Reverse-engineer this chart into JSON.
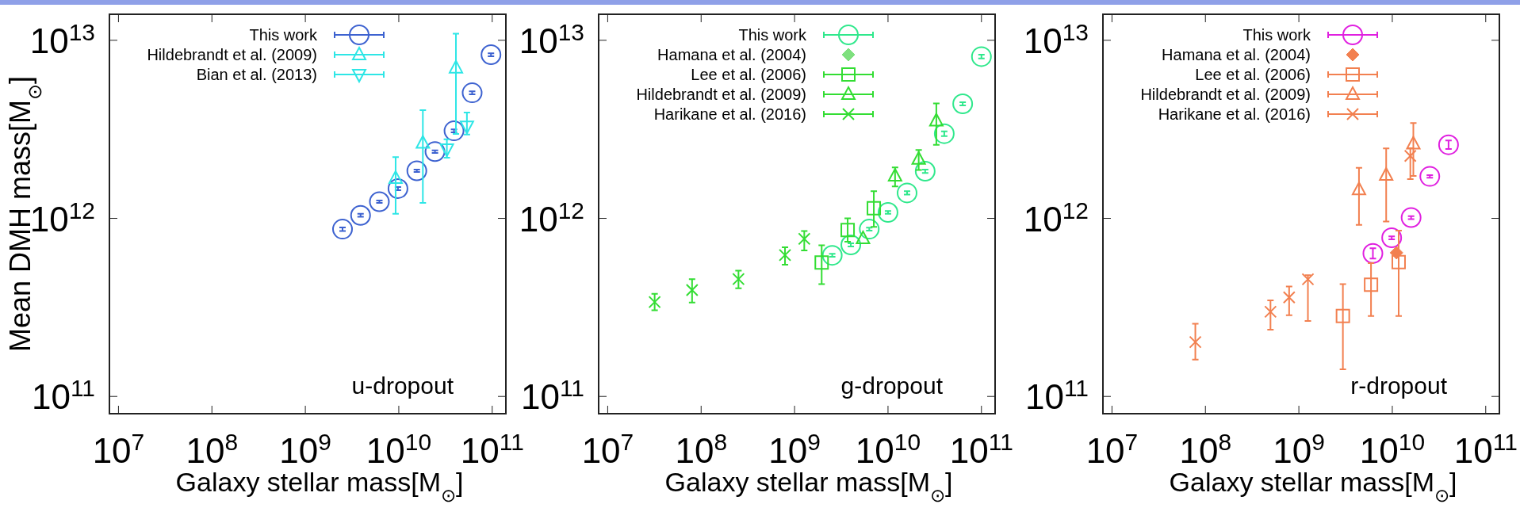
{
  "chart_data": [
    {
      "type": "scatter",
      "log": "xy",
      "legend": "top left",
      "ylabel": "Mean DMH mass[M$_{⊙}$]",
      "xlabel": "Galaxy stellar mass[M$_{⊙}$]",
      "annotations": [
        "u-dropout"
      ],
      "xlim": [
        8000000.0,
        140000000000.0
      ],
      "ylim": [
        80000000000.0,
        14000000000000.0
      ],
      "xticks": [
        {
          "value": 10000000.0,
          "label": "10$^{7}$"
        },
        {
          "value": 100000000.0,
          "label": "10$^{8}$"
        },
        {
          "value": 1000000000.0,
          "label": "10$^{9}$"
        },
        {
          "value": 10000000000.0,
          "label": "10$^{10}$"
        },
        {
          "value": 100000000000.0,
          "label": "10$^{11}$"
        }
      ],
      "yticks": [
        {
          "value": 100000000000.0,
          "label": "10$^{11}$"
        },
        {
          "value": 1000000000000.0,
          "label": "10$^{12}$"
        },
        {
          "value": 10000000000000.0,
          "label": "10$^{13}$"
        }
      ],
      "series": [
        {
          "name": "This work",
          "color": "#3d62d0",
          "marker": "circle",
          "x": [
            2500000000.0,
            3900000000.0,
            6200000000.0,
            9800000000.0,
            15600000000.0,
            24400000000.0,
            39000000000.0,
            61000000000.0,
            97000000000.0
          ],
          "values": [
            870000000000.0,
            1040000000000.0,
            1240000000000.0,
            1470000000000.0,
            1850000000000.0,
            2370000000000.0,
            3100000000000.0,
            5070000000000.0,
            8300000000000.0
          ],
          "errors": [
            [
              850000000000.0,
              890000000000.0
            ],
            [
              1020000000000.0,
              1060000000000.0
            ],
            [
              1220000000000.0,
              1260000000000.0
            ],
            [
              1440000000000.0,
              1500000000000.0
            ],
            [
              1820000000000.0,
              1880000000000.0
            ],
            [
              2330000000000.0,
              2410000000000.0
            ],
            [
              3040000000000.0,
              3160000000000.0
            ],
            [
              4970000000000.0,
              5170000000000.0
            ],
            [
              8140000000000.0,
              8460000000000.0
            ]
          ]
        },
        {
          "name": "Hildebrandt et al. (2009)",
          "color": "#2ee6e6",
          "marker": "triangle",
          "x": [
            9250000000.0,
            18100000000.0,
            40900000000.0
          ],
          "values": [
            1680000000000.0,
            2650000000000.0,
            7000000000000.0
          ],
          "errors": [
            [
              1060000000000.0,
              2210000000000.0
            ],
            [
              1220000000000.0,
              4050000000000.0
            ],
            [
              2980000000000.0,
              10900000000000.0
            ]
          ]
        },
        {
          "name": "Bian et al. (2013)",
          "color": "#2ee6e6",
          "marker": "triangle-down",
          "x": [
            32700000000.0,
            53600000000.0
          ],
          "values": [
            2450000000000.0,
            3290000000000.0
          ],
          "errors": [
            [
              2190000000000.0,
              2780000000000.0
            ],
            [
              2960000000000.0,
              3930000000000.0
            ]
          ]
        }
      ]
    },
    {
      "type": "scatter",
      "log": "xy",
      "legend": "top left",
      "xlabel": "Galaxy stellar mass[M$_{⊙}$]",
      "annotations": [
        "g-dropout"
      ],
      "xlim": [
        8000000.0,
        140000000000.0
      ],
      "ylim": [
        80000000000.0,
        14000000000000.0
      ],
      "xticks": [
        {
          "value": 10000000.0,
          "label": "10$^{7}$"
        },
        {
          "value": 100000000.0,
          "label": "10$^{8}$"
        },
        {
          "value": 1000000000.0,
          "label": "10$^{9}$"
        },
        {
          "value": 10000000000.0,
          "label": "10$^{10}$"
        },
        {
          "value": 100000000000.0,
          "label": "10$^{11}$"
        }
      ],
      "yticks": [
        {
          "value": 100000000000.0,
          "label": "10$^{11}$"
        },
        {
          "value": 1000000000000.0,
          "label": "10$^{12}$"
        },
        {
          "value": 10000000000000.0,
          "label": "10$^{13}$"
        }
      ],
      "series": [
        {
          "name": "This work",
          "color": "#2fe88c",
          "marker": "circle",
          "x": [
            2530000000.0,
            4000000000.0,
            6300000000.0,
            10000000000.0,
            16000000000.0,
            25000000000.0,
            40000000000.0,
            63000000000.0,
            100000000000.0
          ],
          "values": [
            620000000000.0,
            710000000000.0,
            870000000000.0,
            1080000000000.0,
            1390000000000.0,
            1840000000000.0,
            2990000000000.0,
            4400000000000.0,
            8100000000000.0
          ],
          "errors": [
            [
              608000000000.0,
              632000000000.0
            ],
            [
              696000000000.0,
              724000000000.0
            ],
            [
              853000000000.0,
              887000000000.0
            ],
            [
              1060000000000.0,
              1100000000000.0
            ],
            [
              1360000000000.0,
              1420000000000.0
            ],
            [
              1800000000000.0,
              1880000000000.0
            ],
            [
              2900000000000.0,
              3080000000000.0
            ],
            [
              4310000000000.0,
              4490000000000.0
            ],
            [
              7900000000000.0,
              8300000000000.0
            ]
          ]
        },
        {
          "name": "Hamana et al. (2004)",
          "color": "#7ee07e",
          "marker": "diamond"
        },
        {
          "name": "Lee et al. (2006)",
          "color": "#33dd33",
          "marker": "square",
          "x": [
            1950000000.0,
            3700000000.0,
            7050000000.0
          ],
          "values": [
            565000000000.0,
            860000000000.0,
            1140000000000.0
          ],
          "errors": [
            [
              427000000000.0,
              706000000000.0
            ],
            [
              740000000000.0,
              1000000000000.0
            ],
            [
              897000000000.0,
              1420000000000.0
            ]
          ]
        },
        {
          "name": "Hildebrandt et al. (2009)",
          "color": "#33dd33",
          "marker": "triangle",
          "x": [
            5400000000.0,
            11900000000.0,
            21300000000.0,
            32900000000.0
          ],
          "values": [
            770000000000.0,
            1730000000000.0,
            2150000000000.0,
            3530000000000.0
          ],
          "errors": [
            null,
            [
              1510000000000.0,
              1930000000000.0
            ],
            [
              1870000000000.0,
              2420000000000.0
            ],
            [
              2590000000000.0,
              4420000000000.0
            ]
          ]
        },
        {
          "name": "Harikane et al. (2016)",
          "color": "#33dd33",
          "marker": "cross",
          "x": [
            31800000.0,
            80000000.0,
            251000000.0,
            790000000.0,
            1270000000.0
          ],
          "values": [
            339000000000.0,
            396000000000.0,
            456000000000.0,
            622000000000.0,
            767000000000.0
          ],
          "errors": [
            [
              305000000000.0,
              377000000000.0
            ],
            [
              337000000000.0,
              456000000000.0
            ],
            [
              405000000000.0,
              509000000000.0
            ],
            [
              549000000000.0,
              688000000000.0
            ],
            [
              660000000000.0,
              849000000000.0
            ]
          ]
        }
      ]
    },
    {
      "type": "scatter",
      "log": "xy",
      "legend": "top left",
      "xlabel": "Galaxy stellar mass[M$_{⊙}$]",
      "annotations": [
        "r-dropout"
      ],
      "xlim": [
        8000000.0,
        140000000000.0
      ],
      "ylim": [
        80000000000.0,
        14000000000000.0
      ],
      "xticks": [
        {
          "value": 10000000.0,
          "label": "10$^{7}$"
        },
        {
          "value": 100000000.0,
          "label": "10$^{8}$"
        },
        {
          "value": 1000000000.0,
          "label": "10$^{9}$"
        },
        {
          "value": 10000000000.0,
          "label": "10$^{10}$"
        },
        {
          "value": 100000000000.0,
          "label": "10$^{11}$"
        }
      ],
      "yticks": [
        {
          "value": 100000000000.0,
          "label": "10$^{11}$"
        },
        {
          "value": 1000000000000.0,
          "label": "10$^{12}$"
        },
        {
          "value": 10000000000000.0,
          "label": "10$^{13}$"
        }
      ],
      "series": [
        {
          "name": "This work",
          "color": "#e020e0",
          "marker": "circle",
          "x": [
            6200000000.0,
            9850000000.0,
            15900000000.0,
            25200000000.0,
            40000000000.0
          ],
          "values": [
            636000000000.0,
            778000000000.0,
            1010000000000.0,
            1720000000000.0,
            2590000000000.0
          ],
          "errors": [
            [
              595000000000.0,
              680000000000.0
            ],
            [
              763000000000.0,
              793000000000.0
            ],
            [
              990000000000.0,
              1030000000000.0
            ],
            [
              1690000000000.0,
              1750000000000.0
            ],
            [
              2450000000000.0,
              2740000000000.0
            ]
          ]
        },
        {
          "name": "Hamana et al. (2004)",
          "color": "#f28050",
          "marker": "diamond",
          "x": [
            11100000000.0
          ],
          "values": [
            641000000000.0
          ]
        },
        {
          "name": "Lee et al. (2006)",
          "color": "#f28050",
          "marker": "square",
          "x": [
            2960000000.0,
            5920000000.0,
            11700000000.0
          ],
          "values": [
            283000000000.0,
            424000000000.0,
            568000000000.0
          ],
          "errors": [
            [
              142000000000.0,
              427000000000.0
            ],
            [
              283000000000.0,
              560000000000.0
            ],
            [
              283000000000.0,
              853000000000.0
            ]
          ]
        },
        {
          "name": "Hildebrandt et al. (2009)",
          "color": "#f28050",
          "marker": "triangle",
          "x": [
            4400000000.0,
            8600000000.0,
            16800000000.0
          ],
          "values": [
            1450000000000.0,
            1750000000000.0,
            2620000000000.0
          ],
          "errors": [
            [
              920000000000.0,
              1920000000000.0
            ],
            [
              960000000000.0,
              2470000000000.0
            ],
            [
              1730000000000.0,
              3430000000000.0
            ]
          ]
        },
        {
          "name": "Harikane et al. (2016)",
          "color": "#f28050",
          "marker": "cross",
          "x": [
            78000000.0,
            497000000.0,
            787000000.0,
            1250000000.0,
            15600000000.0
          ],
          "values": [
            202000000000.0,
            299000000000.0,
            360000000000.0,
            455000000000.0,
            2240000000000.0
          ],
          "errors": [
            [
              161000000000.0,
              256000000000.0
            ],
            [
              237000000000.0,
              346000000000.0
            ],
            [
              286000000000.0,
              414000000000.0
            ],
            [
              265000000000.0,
              480000000000.0
            ],
            [
              1660000000000.0,
              2480000000000.0
            ]
          ]
        }
      ]
    }
  ]
}
